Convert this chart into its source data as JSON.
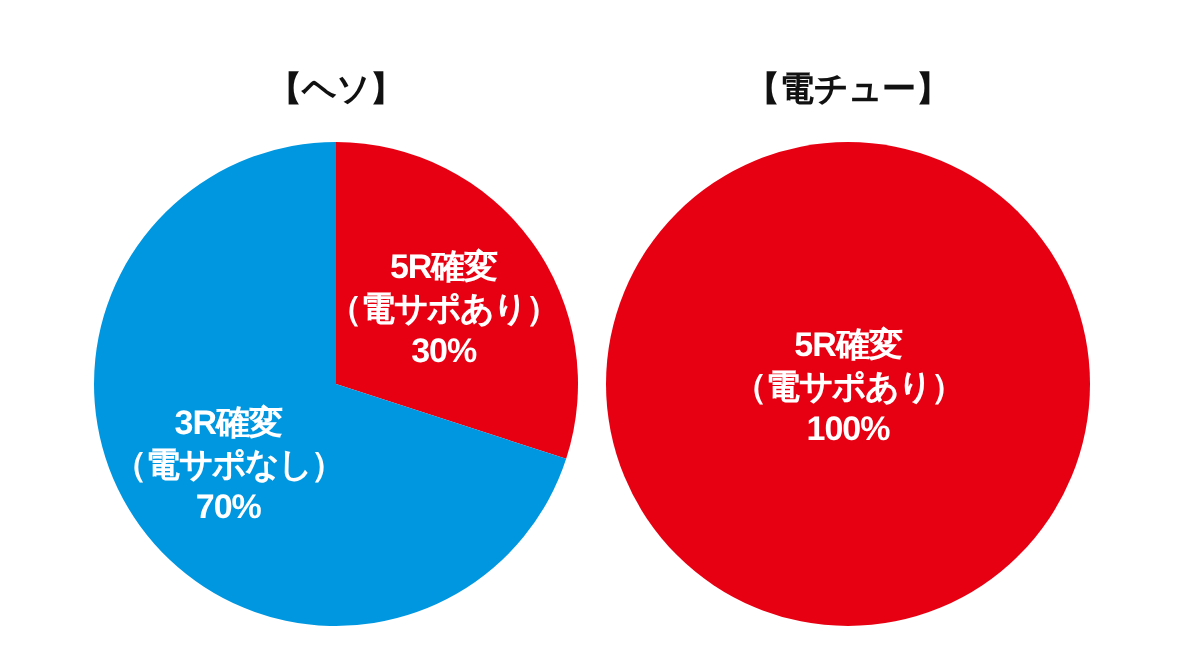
{
  "chart_data": [
    {
      "type": "pie",
      "title": "【ヘソ】",
      "categories": [
        "5R確変（電サポあり）",
        "3R確変（電サポなし）"
      ],
      "values": [
        30,
        70
      ],
      "value_labels": [
        "30%",
        "70%"
      ],
      "colors": [
        "#e60012",
        "#0097e0"
      ]
    },
    {
      "type": "pie",
      "title": "【電チュー】",
      "categories": [
        "5R確変（電サポあり）"
      ],
      "values": [
        100
      ],
      "value_labels": [
        "100%"
      ],
      "colors": [
        "#e60012"
      ]
    }
  ]
}
